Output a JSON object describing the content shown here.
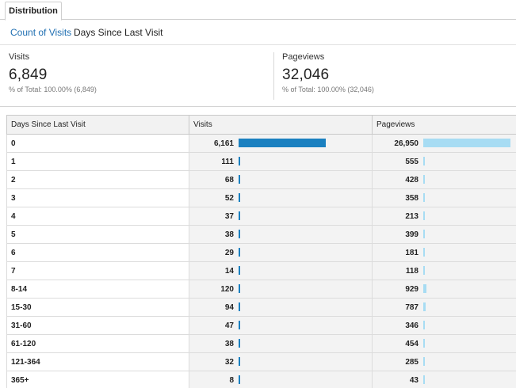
{
  "tabs": [
    {
      "label": "Distribution"
    }
  ],
  "subnav": {
    "active": "Count of Visits",
    "other": "Days Since Last Visit"
  },
  "summary": {
    "visits": {
      "label": "Visits",
      "value": "6,849",
      "total_prefix": "% of Total: ",
      "total": "100.00% (6,849)"
    },
    "pageviews": {
      "label": "Pageviews",
      "value": "32,046",
      "total_prefix": "% of Total: ",
      "total": "100.00% (32,046)"
    }
  },
  "table": {
    "headers": [
      "Days Since Last Visit",
      "Visits",
      "Pageviews"
    ],
    "colors": {
      "visits_bar": "#1a80c0",
      "pageviews_bar": "#a7dcf3"
    },
    "rows": [
      {
        "dim": "0",
        "visits": "6,161",
        "visits_n": 6161,
        "pageviews": "26,950",
        "pageviews_n": 26950
      },
      {
        "dim": "1",
        "visits": "111",
        "visits_n": 111,
        "pageviews": "555",
        "pageviews_n": 555
      },
      {
        "dim": "2",
        "visits": "68",
        "visits_n": 68,
        "pageviews": "428",
        "pageviews_n": 428
      },
      {
        "dim": "3",
        "visits": "52",
        "visits_n": 52,
        "pageviews": "358",
        "pageviews_n": 358
      },
      {
        "dim": "4",
        "visits": "37",
        "visits_n": 37,
        "pageviews": "213",
        "pageviews_n": 213
      },
      {
        "dim": "5",
        "visits": "38",
        "visits_n": 38,
        "pageviews": "399",
        "pageviews_n": 399
      },
      {
        "dim": "6",
        "visits": "29",
        "visits_n": 29,
        "pageviews": "181",
        "pageviews_n": 181
      },
      {
        "dim": "7",
        "visits": "14",
        "visits_n": 14,
        "pageviews": "118",
        "pageviews_n": 118
      },
      {
        "dim": "8-14",
        "visits": "120",
        "visits_n": 120,
        "pageviews": "929",
        "pageviews_n": 929
      },
      {
        "dim": "15-30",
        "visits": "94",
        "visits_n": 94,
        "pageviews": "787",
        "pageviews_n": 787
      },
      {
        "dim": "31-60",
        "visits": "47",
        "visits_n": 47,
        "pageviews": "346",
        "pageviews_n": 346
      },
      {
        "dim": "61-120",
        "visits": "38",
        "visits_n": 38,
        "pageviews": "454",
        "pageviews_n": 454
      },
      {
        "dim": "121-364",
        "visits": "32",
        "visits_n": 32,
        "pageviews": "285",
        "pageviews_n": 285
      },
      {
        "dim": "365+",
        "visits": "8",
        "visits_n": 8,
        "pageviews": "43",
        "pageviews_n": 43
      }
    ]
  }
}
